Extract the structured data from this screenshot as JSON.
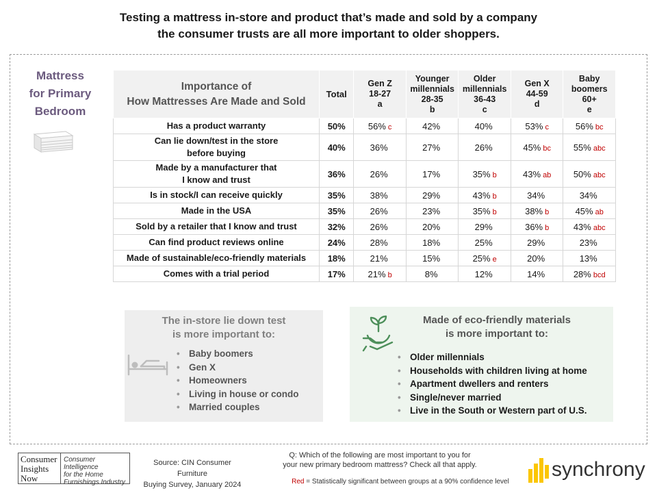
{
  "headline": {
    "line1": "Testing a mattress in-store and product that’s made and sold by a company",
    "line2": "the consumer trusts are all more important to older shoppers."
  },
  "segment": {
    "line1": "Mattress",
    "line2": "for Primary",
    "line3": "Bedroom"
  },
  "table": {
    "title_line1": "Importance of",
    "title_line2": "How Mattresses Are Made and Sold",
    "total_header": "Total",
    "columns": [
      {
        "lines": [
          "Gen Z",
          "18-27",
          "a"
        ]
      },
      {
        "lines": [
          "Younger",
          "millennials",
          "28-35",
          "b"
        ]
      },
      {
        "lines": [
          "Older",
          "millennials",
          "36-43",
          "c"
        ]
      },
      {
        "lines": [
          "Gen X",
          "44-59",
          "d"
        ]
      },
      {
        "lines": [
          "Baby",
          "boomers",
          "60+",
          "e"
        ]
      }
    ],
    "rows": [
      {
        "label": "Has a product warranty",
        "total": "50%",
        "cells": [
          {
            "v": "56%",
            "s": "c"
          },
          {
            "v": "42%",
            "s": ""
          },
          {
            "v": "40%",
            "s": ""
          },
          {
            "v": "53%",
            "s": "c"
          },
          {
            "v": "56%",
            "s": "bc"
          }
        ]
      },
      {
        "label1": "Can lie down/test in the store",
        "label2": "before buying",
        "total": "40%",
        "cells": [
          {
            "v": "36%",
            "s": ""
          },
          {
            "v": "27%",
            "s": ""
          },
          {
            "v": "26%",
            "s": ""
          },
          {
            "v": "45%",
            "s": "bc"
          },
          {
            "v": "55%",
            "s": "abc"
          }
        ]
      },
      {
        "label1": "Made by a manufacturer that",
        "label2": "I know and trust",
        "total": "36%",
        "cells": [
          {
            "v": "26%",
            "s": ""
          },
          {
            "v": "17%",
            "s": ""
          },
          {
            "v": "35%",
            "s": "b"
          },
          {
            "v": "43%",
            "s": "ab"
          },
          {
            "v": "50%",
            "s": "abc"
          }
        ]
      },
      {
        "label": "Is in stock/I can receive quickly",
        "total": "35%",
        "cells": [
          {
            "v": "38%",
            "s": ""
          },
          {
            "v": "29%",
            "s": ""
          },
          {
            "v": "43%",
            "s": "b"
          },
          {
            "v": "34%",
            "s": ""
          },
          {
            "v": "34%",
            "s": ""
          }
        ]
      },
      {
        "label": "Made in the USA",
        "total": "35%",
        "cells": [
          {
            "v": "26%",
            "s": ""
          },
          {
            "v": "23%",
            "s": ""
          },
          {
            "v": "35%",
            "s": "b"
          },
          {
            "v": "38%",
            "s": "b"
          },
          {
            "v": "45%",
            "s": "ab"
          }
        ]
      },
      {
        "label": "Sold by a retailer that I know and trust",
        "total": "32%",
        "cells": [
          {
            "v": "26%",
            "s": ""
          },
          {
            "v": "20%",
            "s": ""
          },
          {
            "v": "29%",
            "s": ""
          },
          {
            "v": "36%",
            "s": "b"
          },
          {
            "v": "43%",
            "s": "abc"
          }
        ]
      },
      {
        "label": "Can find product reviews online",
        "total": "24%",
        "cells": [
          {
            "v": "28%",
            "s": ""
          },
          {
            "v": "18%",
            "s": ""
          },
          {
            "v": "25%",
            "s": ""
          },
          {
            "v": "29%",
            "s": ""
          },
          {
            "v": "23%",
            "s": ""
          }
        ]
      },
      {
        "label": "Made of sustainable/eco-friendly materials",
        "total": "18%",
        "cells": [
          {
            "v": "21%",
            "s": ""
          },
          {
            "v": "15%",
            "s": ""
          },
          {
            "v": "25%",
            "s": "e"
          },
          {
            "v": "20%",
            "s": ""
          },
          {
            "v": "13%",
            "s": ""
          }
        ]
      },
      {
        "label": "Comes with a trial period",
        "total": "17%",
        "cells": [
          {
            "v": "21%",
            "s": "b"
          },
          {
            "v": "8%",
            "s": ""
          },
          {
            "v": "12%",
            "s": ""
          },
          {
            "v": "14%",
            "s": ""
          },
          {
            "v": "28%",
            "s": "bcd"
          }
        ]
      }
    ]
  },
  "box_left": {
    "title1": "The in-store lie down test",
    "title2": "is more important to:",
    "items": [
      "Baby boomers",
      "Gen X",
      "Homeowners",
      "Living in house or condo",
      "Married couples"
    ]
  },
  "box_right": {
    "title1": "Made of eco-friendly materials",
    "title2": "is more important to:",
    "items": [
      "Older millennials",
      "Households with children living at home",
      "Apartment dwellers and renters",
      "Single/never married",
      "Live in the South or Western part of U.S."
    ]
  },
  "footer": {
    "cin_left": [
      "Consumer",
      "Insights",
      "Now"
    ],
    "cin_right": [
      "Consumer Intelligence",
      "for the Home",
      "Furnishings Industry"
    ],
    "source1": "Source: CIN Consumer Furniture",
    "source2": "Buying Survey, January 2024",
    "question1": "Q: Which of the following are most important to you for",
    "question2": "your new primary bedroom mattress? Check all that apply.",
    "footnote_red": "Red",
    "footnote_rest": " = Statistically significant between groups at a 90% confidence level",
    "brand": "synchrony"
  },
  "colors": {
    "significance": "#c00000",
    "segment": "#6b5a7e",
    "brand_yellow": "#fbc600"
  }
}
